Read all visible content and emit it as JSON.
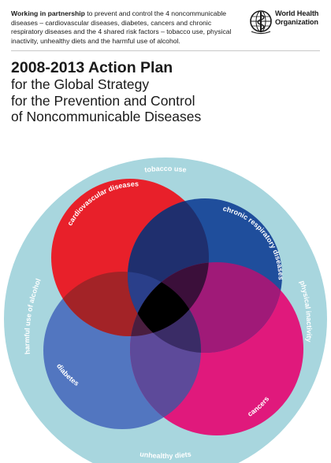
{
  "header": {
    "intro_bold": "Working in partnership",
    "intro_rest": " to prevent and control the 4 noncommunicable diseases – cardiovascular diseases, diabetes, cancers and chronic respiratory diseases and the 4 shared risk factors – tobacco use, physical inactivity, unhealthy diets and the harmful use of alcohol.",
    "who_line1": "World Health",
    "who_line2": "Organization",
    "who_logo_icon": "who-emblem-icon"
  },
  "title": {
    "main": "2008-2013 Action Plan",
    "line2": "for the Global Strategy",
    "line3": "for the Prevention and Control",
    "line4": "of Noncommunicable Diseases"
  },
  "risk_factors": {
    "top": "tobacco use",
    "right": "physical inactivity",
    "bottom": "unhealthy diets",
    "left": "harmful use of alcohol"
  },
  "diseases": {
    "cardiovascular": "cardiovascular diseases",
    "respiratory": "chronic respiratory diseases",
    "diabetes": "diabetes",
    "cancers": "cancers"
  },
  "colors": {
    "ring": "#a8d6de",
    "cardiovascular": "#e8202a",
    "respiratory": "#1f4e9c",
    "diabetes": "#5276c0",
    "cancers": "#e0197c",
    "center": "#000000"
  }
}
